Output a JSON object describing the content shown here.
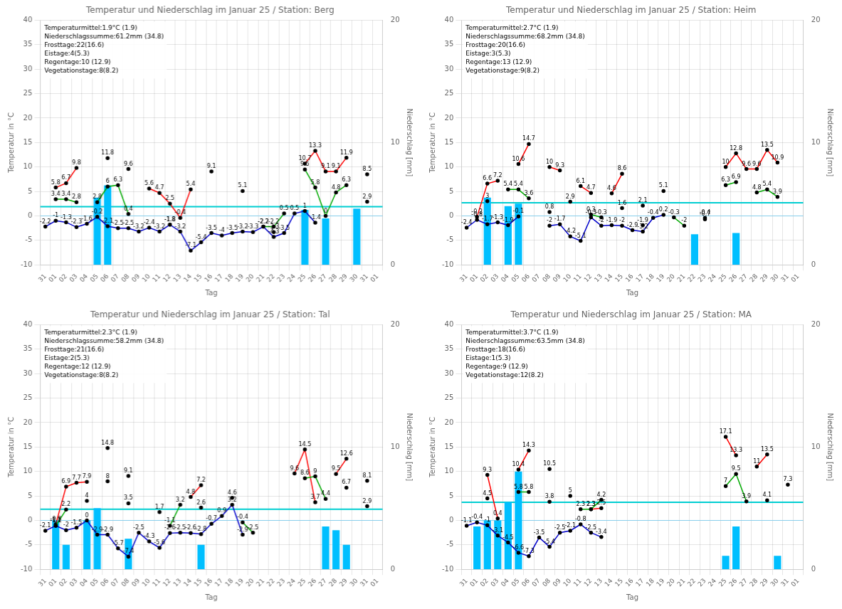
{
  "chart_data": [
    {
      "type": "bar",
      "title": "Temperatur und Niederschlag im Januar 25 / Station: Berg",
      "x_label": "Tag",
      "y_label": "Temperatur in °C",
      "y2_label": "Niederschlag [mm]",
      "categories": [
        "31",
        "01",
        "02",
        "03",
        "04",
        "05",
        "06",
        "07",
        "08",
        "09",
        "10",
        "11",
        "12",
        "13",
        "14",
        "15",
        "16",
        "17",
        "18",
        "19",
        "20",
        "21",
        "22",
        "23",
        "24",
        "25",
        "26",
        "27",
        "28",
        "29",
        "30",
        "31",
        "01"
      ],
      "series": [
        {
          "type": "bar",
          "axis": "y2",
          "color": "#00bfff",
          "values": [
            0.0,
            0.0,
            0.0,
            0.0,
            0.0,
            5.5,
            6.5,
            0.0,
            0.0,
            0.0,
            0.0,
            0.0,
            0.0,
            0.0,
            0.0,
            0.0,
            0.0,
            0.0,
            0.0,
            0.0,
            0.0,
            0.0,
            0.0,
            0.0,
            0.0,
            4.5,
            0.0,
            3.8,
            0.0,
            0.0,
            4.6,
            0.0,
            0.0
          ]
        },
        {
          "type": "line",
          "color": "#ff0000",
          "marker": "circle",
          "data_labels": true,
          "values": [
            null,
            5.8,
            6.7,
            9.8,
            null,
            null,
            11.8,
            null,
            9.6,
            null,
            5.6,
            4.7,
            2.5,
            -0.4,
            5.4,
            null,
            9.1,
            null,
            null,
            5.1,
            null,
            null,
            -3.3,
            null,
            null,
            10.7,
            13.3,
            9.1,
            9.1,
            11.9,
            null,
            8.5,
            null
          ]
        },
        {
          "type": "line",
          "color": "#00aa00",
          "marker": "circle",
          "data_labels": true,
          "values": [
            null,
            3.4,
            3.4,
            2.8,
            null,
            2.8,
            6.0,
            6.3,
            0.4,
            null,
            null,
            null,
            -1.8,
            null,
            null,
            null,
            null,
            null,
            null,
            null,
            null,
            -2.2,
            -2.2,
            0.5,
            null,
            9.5,
            5.8,
            0.0,
            4.8,
            6.3,
            null,
            2.9,
            null
          ]
        },
        {
          "type": "line",
          "color": "#0000cc",
          "marker": "circle",
          "data_labels": true,
          "values": [
            -2.2,
            -1.0,
            -1.3,
            -2.3,
            -1.6,
            -0.2,
            -2.1,
            -2.5,
            -2.5,
            -3.2,
            -2.4,
            -3.2,
            -1.8,
            -3.2,
            -7.1,
            -5.4,
            -3.5,
            -4.0,
            -3.5,
            -3.2,
            -3.3,
            -2.2,
            -4.3,
            -3.5,
            0.5,
            1.0,
            -1.4,
            null,
            null,
            null,
            null,
            null,
            null
          ]
        }
      ],
      "reference_lines": [
        {
          "value": 0,
          "color": "#87ceeb"
        },
        {
          "value": 1.9,
          "color": "#00ced1"
        }
      ],
      "annotation": "Temperaturmittel:1.9°C (1.9)\nNiederschlagssumme:61.2mm (34.8)\nFrosttage:22(16.6)\nEistage:4(5.3)\nRegentage:10 (12.9)\nVegetationstage:8(8.2)",
      "ylim": [
        -10,
        40
      ],
      "yticks": [
        -10,
        -5,
        0,
        5,
        10,
        15,
        20,
        25,
        30,
        35,
        40
      ],
      "y2lim": [
        0,
        20
      ],
      "y2ticks": [
        0,
        10,
        20
      ],
      "grid": true
    },
    {
      "type": "bar",
      "title": "Temperatur und Niederschlag im Januar 25 / Station: Heim",
      "x_label": "Tag",
      "y_label": "Temperatur in °C",
      "y2_label": "Niederschlag [mm]",
      "categories": [
        "31",
        "01",
        "02",
        "03",
        "04",
        "05",
        "06",
        "07",
        "08",
        "09",
        "10",
        "11",
        "12",
        "13",
        "14",
        "15",
        "16",
        "17",
        "18",
        "19",
        "20",
        "21",
        "22",
        "23",
        "24",
        "25",
        "26",
        "27",
        "28",
        "29",
        "30",
        "31",
        "01"
      ],
      "series": [
        {
          "type": "bar",
          "axis": "y2",
          "color": "#00bfff",
          "values": [
            0.0,
            0.0,
            5.5,
            0.0,
            4.8,
            5.0,
            0.0,
            0.0,
            0.0,
            0.0,
            0.0,
            0.0,
            0.0,
            0.0,
            0.0,
            0.0,
            0.0,
            0.0,
            0.0,
            0.0,
            0.0,
            0.0,
            2.5,
            0.0,
            0.0,
            0.0,
            2.6,
            0.0,
            0.0,
            0.0,
            0.0,
            0.0,
            0.0
          ]
        },
        {
          "type": "line",
          "color": "#ff0000",
          "marker": "circle",
          "data_labels": true,
          "values": [
            null,
            -0.2,
            6.6,
            7.2,
            null,
            10.6,
            14.7,
            null,
            10.0,
            9.3,
            null,
            6.1,
            4.7,
            null,
            4.6,
            8.6,
            null,
            2.1,
            null,
            5.1,
            null,
            null,
            null,
            -0.4,
            null,
            10.0,
            12.8,
            9.6,
            9.6,
            13.5,
            10.9,
            null,
            null
          ]
        },
        {
          "type": "line",
          "color": "#00aa00",
          "marker": "circle",
          "data_labels": true,
          "values": [
            null,
            null,
            3.0,
            null,
            5.4,
            5.4,
            3.6,
            null,
            0.8,
            null,
            2.9,
            null,
            0.3,
            -0.3,
            null,
            1.6,
            null,
            -1.9,
            null,
            null,
            -0.3,
            -2.0,
            null,
            -0.7,
            null,
            6.3,
            6.9,
            null,
            4.8,
            5.4,
            3.9,
            null,
            null
          ]
        },
        {
          "type": "line",
          "color": "#0000cc",
          "marker": "circle",
          "data_labels": true,
          "values": [
            -2.4,
            -0.8,
            -1.7,
            -1.3,
            -1.9,
            -0.1,
            null,
            null,
            -2.0,
            -1.7,
            -4.2,
            -5.1,
            -0.3,
            -2.0,
            -1.9,
            -2.0,
            -2.9,
            -3.2,
            -0.4,
            0.2,
            null,
            null,
            null,
            null,
            null,
            null,
            null,
            null,
            null,
            null,
            null,
            null,
            null
          ]
        }
      ],
      "reference_lines": [
        {
          "value": 0,
          "color": "#87ceeb"
        },
        {
          "value": 2.7,
          "color": "#00ced1"
        }
      ],
      "annotation": "Temperaturmittel:2.7°C (1.9)\nNiederschlagssumme:68.2mm (34.8)\nFrosttage:20(16.6)\nEistage:3(5.3)\nRegentage:13 (12.9)\nVegetationstage:9(8.2)",
      "ylim": [
        -10,
        40
      ],
      "yticks": [
        -10,
        -5,
        0,
        5,
        10,
        15,
        20,
        25,
        30,
        35,
        40
      ],
      "y2lim": [
        0,
        20
      ],
      "y2ticks": [
        0,
        10,
        20
      ],
      "grid": true
    },
    {
      "type": "bar",
      "title": "Temperatur und Niederschlag im Januar 25 / Station: Tal",
      "x_label": "Tag",
      "y_label": "Temperatur in °C",
      "y2_label": "Niederschlag [mm]",
      "categories": [
        "31",
        "01",
        "02",
        "03",
        "04",
        "05",
        "06",
        "07",
        "08",
        "09",
        "10",
        "11",
        "12",
        "13",
        "14",
        "15",
        "16",
        "17",
        "18",
        "19",
        "20",
        "21",
        "22",
        "23",
        "24",
        "25",
        "26",
        "27",
        "28",
        "29",
        "30",
        "31",
        "01"
      ],
      "series": [
        {
          "type": "bar",
          "axis": "y2",
          "color": "#00bfff",
          "values": [
            0.0,
            4.0,
            2.0,
            0.0,
            4.0,
            5.0,
            0.0,
            0.0,
            2.5,
            0.0,
            0.0,
            0.0,
            0.0,
            0.0,
            0.0,
            2.0,
            0.0,
            0.0,
            0.0,
            0.0,
            0.0,
            0.0,
            0.0,
            0.0,
            0.0,
            0.0,
            0.0,
            3.5,
            3.2,
            2.0,
            0.0,
            0.0,
            0.0
          ]
        },
        {
          "type": "line",
          "color": "#ff0000",
          "marker": "circle",
          "data_labels": true,
          "values": [
            null,
            -0.8,
            6.9,
            7.7,
            7.9,
            null,
            14.8,
            null,
            9.1,
            null,
            null,
            1.7,
            null,
            null,
            4.8,
            7.2,
            null,
            null,
            4.6,
            null,
            null,
            null,
            null,
            null,
            9.6,
            14.5,
            3.7,
            null,
            9.5,
            12.6,
            null,
            8.1,
            null
          ]
        },
        {
          "type": "line",
          "color": "#00aa00",
          "marker": "circle",
          "data_labels": true,
          "values": [
            null,
            -1.1,
            2.2,
            null,
            4.0,
            null,
            8.0,
            null,
            3.5,
            null,
            null,
            null,
            -1.1,
            3.2,
            null,
            2.6,
            null,
            null,
            null,
            -0.4,
            -2.5,
            null,
            null,
            null,
            null,
            8.6,
            9.0,
            4.4,
            null,
            6.7,
            null,
            2.9,
            null
          ]
        },
        {
          "type": "line",
          "color": "#0000cc",
          "marker": "circle",
          "data_labels": true,
          "values": [
            -2.1,
            -1.1,
            -2.0,
            -1.5,
            0.0,
            -2.9,
            -2.9,
            -5.7,
            -7.4,
            -2.5,
            -4.3,
            -5.6,
            -2.6,
            -2.5,
            -2.6,
            -2.8,
            -0.7,
            0.9,
            3.2,
            -2.9,
            null,
            null,
            null,
            null,
            null,
            null,
            null,
            null,
            null,
            null,
            null,
            null,
            null
          ]
        }
      ],
      "reference_lines": [
        {
          "value": 0,
          "color": "#87ceeb"
        },
        {
          "value": 2.3,
          "color": "#00ced1"
        }
      ],
      "annotation": "Temperaturmittel:2.3°C (1.9)\nNiederschlagssumme:58.2mm (34.8)\nFrosttage:21(16.6)\nEistage:2(5.3)\nRegentage:12 (12.9)\nVegetationstage:8(8.2)",
      "ylim": [
        -10,
        40
      ],
      "yticks": [
        -10,
        -5,
        0,
        5,
        10,
        15,
        20,
        25,
        30,
        35,
        40
      ],
      "y2lim": [
        0,
        20
      ],
      "y2ticks": [
        0,
        10,
        20
      ],
      "grid": true
    },
    {
      "type": "bar",
      "title": "Temperatur und Niederschlag im Januar 25 / Station: MA",
      "x_label": "Tag",
      "y_label": "Temperatur in °C",
      "y2_label": "Niederschlag [mm]",
      "categories": [
        "31",
        "01",
        "02",
        "03",
        "04",
        "05",
        "06",
        "07",
        "08",
        "09",
        "10",
        "11",
        "12",
        "13",
        "14",
        "15",
        "16",
        "17",
        "18",
        "19",
        "20",
        "21",
        "22",
        "23",
        "24",
        "25",
        "26",
        "27",
        "28",
        "29",
        "30",
        "31",
        "01"
      ],
      "series": [
        {
          "type": "bar",
          "axis": "y2",
          "color": "#00bfff",
          "values": [
            0.0,
            3.5,
            4.0,
            4.0,
            5.5,
            8.0,
            0.0,
            0.0,
            0.0,
            0.0,
            0.0,
            0.0,
            0.0,
            0.0,
            0.0,
            0.0,
            0.0,
            0.0,
            0.0,
            0.0,
            0.0,
            0.0,
            0.0,
            0.0,
            0.0,
            1.1,
            3.5,
            0.0,
            0.0,
            0.0,
            1.1,
            0.0,
            0.0
          ]
        },
        {
          "type": "line",
          "color": "#ff0000",
          "marker": "circle",
          "data_labels": true,
          "values": [
            null,
            null,
            9.3,
            0.4,
            null,
            10.4,
            14.3,
            null,
            10.5,
            null,
            5.0,
            null,
            2.3,
            2.5,
            null,
            null,
            null,
            null,
            null,
            null,
            null,
            null,
            null,
            null,
            null,
            17.1,
            13.3,
            null,
            11.0,
            13.5,
            null,
            7.3,
            null
          ]
        },
        {
          "type": "line",
          "color": "#00aa00",
          "marker": "circle",
          "data_labels": true,
          "values": [
            null,
            null,
            4.5,
            null,
            null,
            5.8,
            5.8,
            null,
            3.8,
            null,
            null,
            2.3,
            2.3,
            4.2,
            null,
            null,
            null,
            null,
            null,
            null,
            null,
            null,
            null,
            null,
            null,
            7.0,
            9.5,
            3.9,
            null,
            4.1,
            null,
            null,
            null
          ]
        },
        {
          "type": "line",
          "color": "#0000cc",
          "marker": "circle",
          "data_labels": true,
          "values": [
            -1.1,
            -0.4,
            -1.0,
            -3.1,
            -4.5,
            -6.6,
            -7.3,
            -3.5,
            -5.4,
            -2.5,
            -2.1,
            -0.8,
            -2.5,
            -3.4,
            null,
            null,
            null,
            null,
            null,
            null,
            null,
            null,
            null,
            null,
            null,
            null,
            null,
            null,
            null,
            null,
            null,
            null,
            null
          ]
        }
      ],
      "reference_lines": [
        {
          "value": 0,
          "color": "#87ceeb"
        },
        {
          "value": 3.7,
          "color": "#00ced1"
        }
      ],
      "annotation": "Temperaturmittel:3.7°C (1.9)\nNiederschlagssumme:63.5mm (34.8)\nFrosttage:18(16.6)\nEistage:1(5.3)\nRegentage:9 (12.9)\nVegetationstage:12(8.2)",
      "ylim": [
        -10,
        40
      ],
      "yticks": [
        -10,
        -5,
        0,
        5,
        10,
        15,
        20,
        25,
        30,
        35,
        40
      ],
      "y2lim": [
        0,
        20
      ],
      "y2ticks": [
        0,
        10,
        20
      ],
      "grid": true
    }
  ]
}
